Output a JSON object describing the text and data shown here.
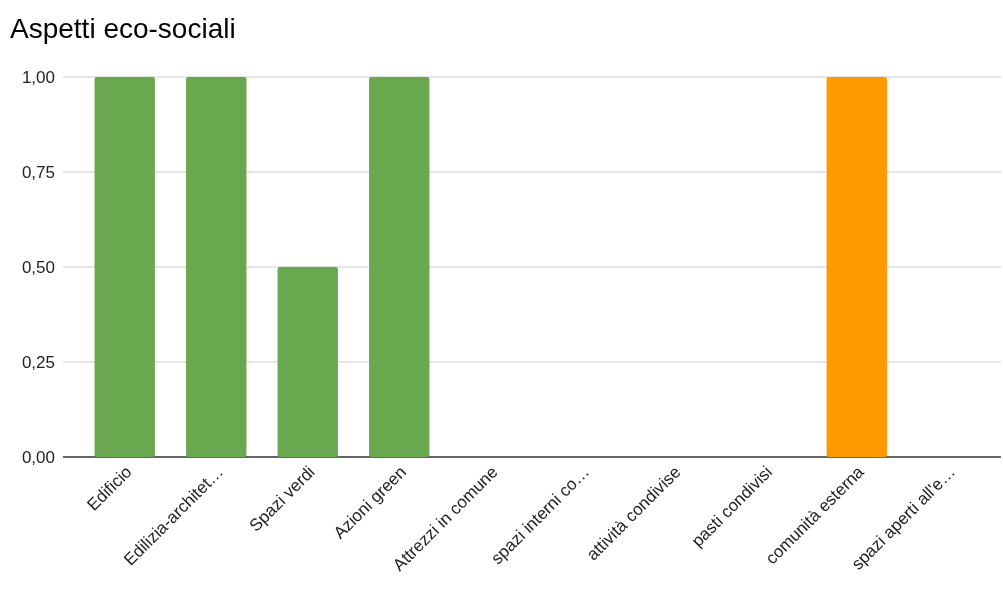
{
  "chart_data": {
    "type": "bar",
    "title": "Aspetti eco-sociali",
    "categories": [
      "Edificio",
      "Edilizia-architet…",
      "Spazi verdi",
      "Azioni green",
      "Attrezzi in comune",
      "spazi interni co…",
      "attività condivise",
      "pasti condivisi",
      "comunità esterna",
      "spazi aperti all'e…"
    ],
    "values": [
      1,
      1,
      0.5,
      1,
      0,
      0,
      0,
      0,
      1,
      0
    ],
    "colors": [
      "#6aa84f",
      "#6aa84f",
      "#6aa84f",
      "#6aa84f",
      "#6aa84f",
      "#6aa84f",
      "#6aa84f",
      "#6aa84f",
      "#ff9900",
      "#6aa84f"
    ],
    "ylim": [
      0,
      1
    ],
    "yticks": [
      {
        "value": 0,
        "label": "0,00"
      },
      {
        "value": 0.25,
        "label": "0,25"
      },
      {
        "value": 0.5,
        "label": "0,50"
      },
      {
        "value": 0.75,
        "label": "0,75"
      },
      {
        "value": 1,
        "label": "1,00"
      }
    ],
    "grid": "y"
  }
}
